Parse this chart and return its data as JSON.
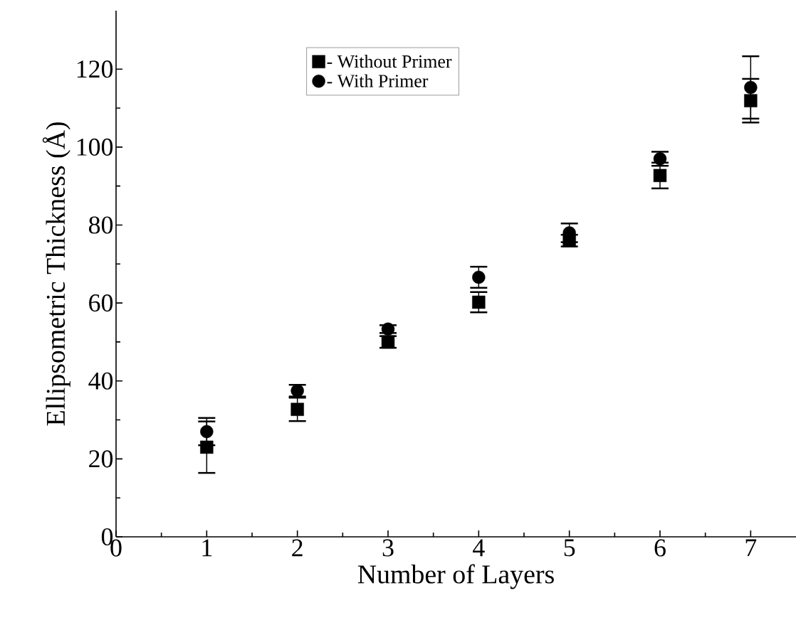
{
  "chart_data": {
    "type": "scatter",
    "xlabel": "Number of Layers",
    "ylabel": "Ellipsometric Thickness (Å)",
    "x": [
      1,
      2,
      3,
      4,
      5,
      6,
      7
    ],
    "series": [
      {
        "name": "- Without Primer",
        "color": "#000000",
        "marker": "square",
        "values": [
          23,
          32.7,
          50,
          60.2,
          76,
          92.7,
          111.9
        ],
        "errors": [
          6.6,
          3,
          1.5,
          2.6,
          1.5,
          3.3,
          5.6
        ]
      },
      {
        "name": "- With Primer",
        "color": "#000000",
        "marker": "circle",
        "values": [
          27,
          37.5,
          53.3,
          66.6,
          78,
          97,
          115.3
        ],
        "errors": [
          3.5,
          1.5,
          1,
          2.7,
          2.4,
          1.8,
          8
        ]
      }
    ],
    "xlim": [
      0,
      7.5
    ],
    "ylim": [
      0,
      135
    ],
    "xticks": [
      0,
      1,
      2,
      3,
      4,
      5,
      6,
      7
    ],
    "yticks": [
      0,
      20,
      40,
      60,
      80,
      100,
      120
    ],
    "grid": false,
    "legend": "top"
  }
}
